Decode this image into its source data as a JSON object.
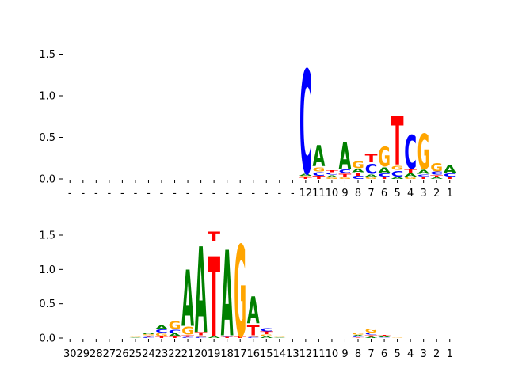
{
  "chart_data": [
    {
      "type": "sequence-logo",
      "panel": "top",
      "alphabet": [
        "A",
        "C",
        "G",
        "T"
      ],
      "colors": {
        "A": "#008000",
        "C": "#0000ff",
        "G": "#ffa500",
        "T": "#ff0000"
      },
      "ylim": [
        0,
        1.6
      ],
      "yticks": [
        0.0,
        0.5,
        1.0,
        1.5
      ],
      "ytick_labels": [
        "0.0",
        "0.5",
        "1.0",
        "1.5"
      ],
      "xtick_labels": [
        "-",
        "-",
        "-",
        "-",
        "-",
        "-",
        "-",
        "-",
        "-",
        "-",
        "-",
        "-",
        "-",
        "-",
        "-",
        "-",
        "-",
        "-",
        "12",
        "11",
        "10",
        "9",
        "8",
        "7",
        "6",
        "5",
        "4",
        "3",
        "2",
        "1"
      ],
      "positions": [
        [],
        [],
        [],
        [],
        [],
        [],
        [],
        [],
        [],
        [],
        [],
        [],
        [],
        [],
        [],
        [],
        [],
        [],
        [
          [
            "T",
            0.02
          ],
          [
            "G",
            0.02
          ],
          [
            "A",
            0.03
          ],
          [
            "C",
            1.48
          ]
        ],
        [
          [
            "T",
            0.04
          ],
          [
            "C",
            0.05
          ],
          [
            "G",
            0.06
          ],
          [
            "A",
            0.3
          ]
        ],
        [
          [
            "G",
            0.02
          ],
          [
            "A",
            0.03
          ],
          [
            "C",
            0.03
          ],
          [
            "T",
            0.03
          ]
        ],
        [
          [
            "G",
            0.02
          ],
          [
            "T",
            0.05
          ],
          [
            "C",
            0.05
          ],
          [
            "A",
            0.38
          ]
        ],
        [
          [
            "C",
            0.04
          ],
          [
            "T",
            0.04
          ],
          [
            "A",
            0.05
          ],
          [
            "G",
            0.1
          ]
        ],
        [
          [
            "G",
            0.03
          ],
          [
            "A",
            0.03
          ],
          [
            "C",
            0.14
          ],
          [
            "T",
            0.12
          ]
        ],
        [
          [
            "T",
            0.03
          ],
          [
            "C",
            0.04
          ],
          [
            "A",
            0.08
          ],
          [
            "G",
            0.28
          ]
        ],
        [
          [
            "A",
            0.03
          ],
          [
            "C",
            0.08
          ],
          [
            "G",
            0.06
          ],
          [
            "T",
            0.69
          ]
        ],
        [
          [
            "G",
            0.03
          ],
          [
            "A",
            0.04
          ],
          [
            "T",
            0.06
          ],
          [
            "C",
            0.48
          ]
        ],
        [
          [
            "T",
            0.03
          ],
          [
            "C",
            0.03
          ],
          [
            "A",
            0.06
          ],
          [
            "G",
            0.51
          ]
        ],
        [
          [
            "A",
            0.02
          ],
          [
            "T",
            0.03
          ],
          [
            "C",
            0.04
          ],
          [
            "G",
            0.12
          ]
        ],
        [
          [
            "T",
            0.03
          ],
          [
            "C",
            0.04
          ],
          [
            "A",
            0.11
          ]
        ]
      ]
    },
    {
      "type": "sequence-logo",
      "panel": "bottom",
      "alphabet": [
        "A",
        "C",
        "G",
        "T"
      ],
      "colors": {
        "A": "#008000",
        "C": "#0000ff",
        "G": "#ffa500",
        "T": "#ff0000"
      },
      "ylim": [
        0,
        1.95
      ],
      "yticks": [
        0.0,
        0.5,
        1.0,
        1.5
      ],
      "ytick_labels": [
        "0.0",
        "0.5",
        "1.0",
        "1.5"
      ],
      "xtick_labels": [
        "30",
        "29",
        "28",
        "27",
        "26",
        "25",
        "24",
        "23",
        "22",
        "21",
        "20",
        "19",
        "18",
        "17",
        "16",
        "15",
        "14",
        "13",
        "12",
        "11",
        "10",
        "9",
        "8",
        "7",
        "6",
        "5",
        "4",
        "3",
        "2",
        "1"
      ],
      "positions": [
        [],
        [],
        [],
        [],
        [],
        [
          [
            "A",
            0.01
          ],
          [
            "G",
            0.01
          ]
        ],
        [
          [
            "C",
            0.02
          ],
          [
            "T",
            0.02
          ],
          [
            "G",
            0.02
          ],
          [
            "A",
            0.03
          ]
        ],
        [
          [
            "T",
            0.03
          ],
          [
            "G",
            0.05
          ],
          [
            "C",
            0.05
          ],
          [
            "A",
            0.06
          ]
        ],
        [
          [
            "T",
            0.03
          ],
          [
            "A",
            0.04
          ],
          [
            "C",
            0.06
          ],
          [
            "G",
            0.13
          ]
        ],
        [
          [
            "C",
            0.02
          ],
          [
            "T",
            0.03
          ],
          [
            "G",
            0.13
          ],
          [
            "A",
            0.97
          ]
        ],
        [
          [
            "C",
            0.02
          ],
          [
            "G",
            0.02
          ],
          [
            "T",
            0.05
          ],
          [
            "A",
            1.48
          ]
        ],
        [
          [
            "A",
            0.03
          ],
          [
            "T",
            1.38
          ],
          [
            "T",
            0.17
          ]
        ],
        [
          [
            "T",
            0.02
          ],
          [
            "C",
            0.02
          ],
          [
            "A",
            1.48
          ]
        ],
        [
          [
            "T",
            0.03
          ],
          [
            "G",
            1.58
          ]
        ],
        [
          [
            "C",
            0.02
          ],
          [
            "G",
            0.02
          ],
          [
            "T",
            0.18
          ],
          [
            "A",
            0.46
          ]
        ],
        [
          [
            "A",
            0.03
          ],
          [
            "G",
            0.03
          ],
          [
            "T",
            0.04
          ],
          [
            "C",
            0.05
          ]
        ],
        [
          [
            "A",
            0.01
          ],
          [
            "G",
            0.01
          ]
        ],
        [],
        [],
        [],
        [],
        [],
        [
          [
            "T",
            0.01
          ],
          [
            "C",
            0.02
          ],
          [
            "A",
            0.02
          ],
          [
            "G",
            0.03
          ]
        ],
        [
          [
            "A",
            0.02
          ],
          [
            "T",
            0.03
          ],
          [
            "C",
            0.03
          ],
          [
            "G",
            0.07
          ]
        ],
        [
          [
            "C",
            0.01
          ],
          [
            "A",
            0.02
          ],
          [
            "T",
            0.02
          ]
        ],
        [
          [
            "G",
            0.01
          ]
        ],
        [],
        [],
        [],
        []
      ]
    }
  ]
}
